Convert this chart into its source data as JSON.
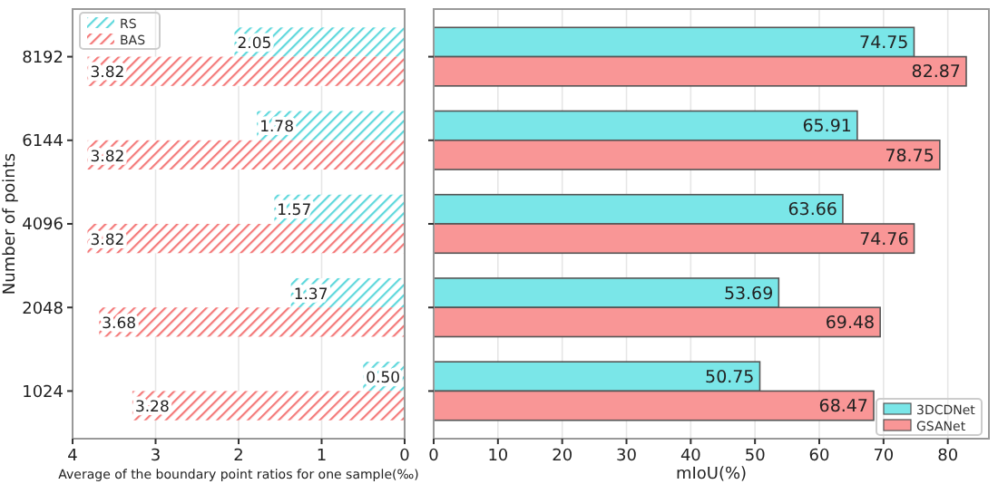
{
  "chart_data": [
    {
      "type": "bar",
      "orientation": "horizontal",
      "ylabel": "Number of points",
      "xlabel": "Average of the boundary point ratios for one sample(‰)",
      "categories": [
        "8192",
        "6144",
        "4096",
        "2048",
        "1024"
      ],
      "series": [
        {
          "name": "RS",
          "color": "#5fd8dc",
          "values": [
            2.05,
            1.78,
            1.57,
            1.37,
            0.5
          ],
          "value_labels": [
            "2.05",
            "1.78",
            "1.57",
            "1.37",
            "0.50"
          ]
        },
        {
          "name": "BAS",
          "color": "#f47a7a",
          "values": [
            3.82,
            3.82,
            3.82,
            3.68,
            3.28
          ],
          "value_labels": [
            "3.82",
            "3.82",
            "3.82",
            "3.68",
            "3.28"
          ]
        }
      ],
      "xlim": [
        4,
        0
      ],
      "xticks": [
        4,
        3,
        2,
        1,
        0
      ],
      "grid": "x",
      "legend": "top left"
    },
    {
      "type": "bar",
      "orientation": "horizontal",
      "xlabel": "mIoU(%)",
      "categories": [
        "8192",
        "6144",
        "4096",
        "2048",
        "1024"
      ],
      "series": [
        {
          "name": "3DCDNet",
          "color": "#7ae6e8",
          "values": [
            74.75,
            65.91,
            63.66,
            53.69,
            50.75
          ]
        },
        {
          "name": "GSANet",
          "color": "#f99696",
          "values": [
            82.87,
            78.75,
            74.76,
            69.48,
            68.47
          ]
        }
      ],
      "xlim": [
        0,
        86.4
      ],
      "xticks": [
        0,
        10,
        20,
        30,
        40,
        50,
        60,
        70,
        80
      ],
      "grid": "x",
      "legend": "bottom right",
      "data_labels": true,
      "tick_labels": "x"
    }
  ]
}
